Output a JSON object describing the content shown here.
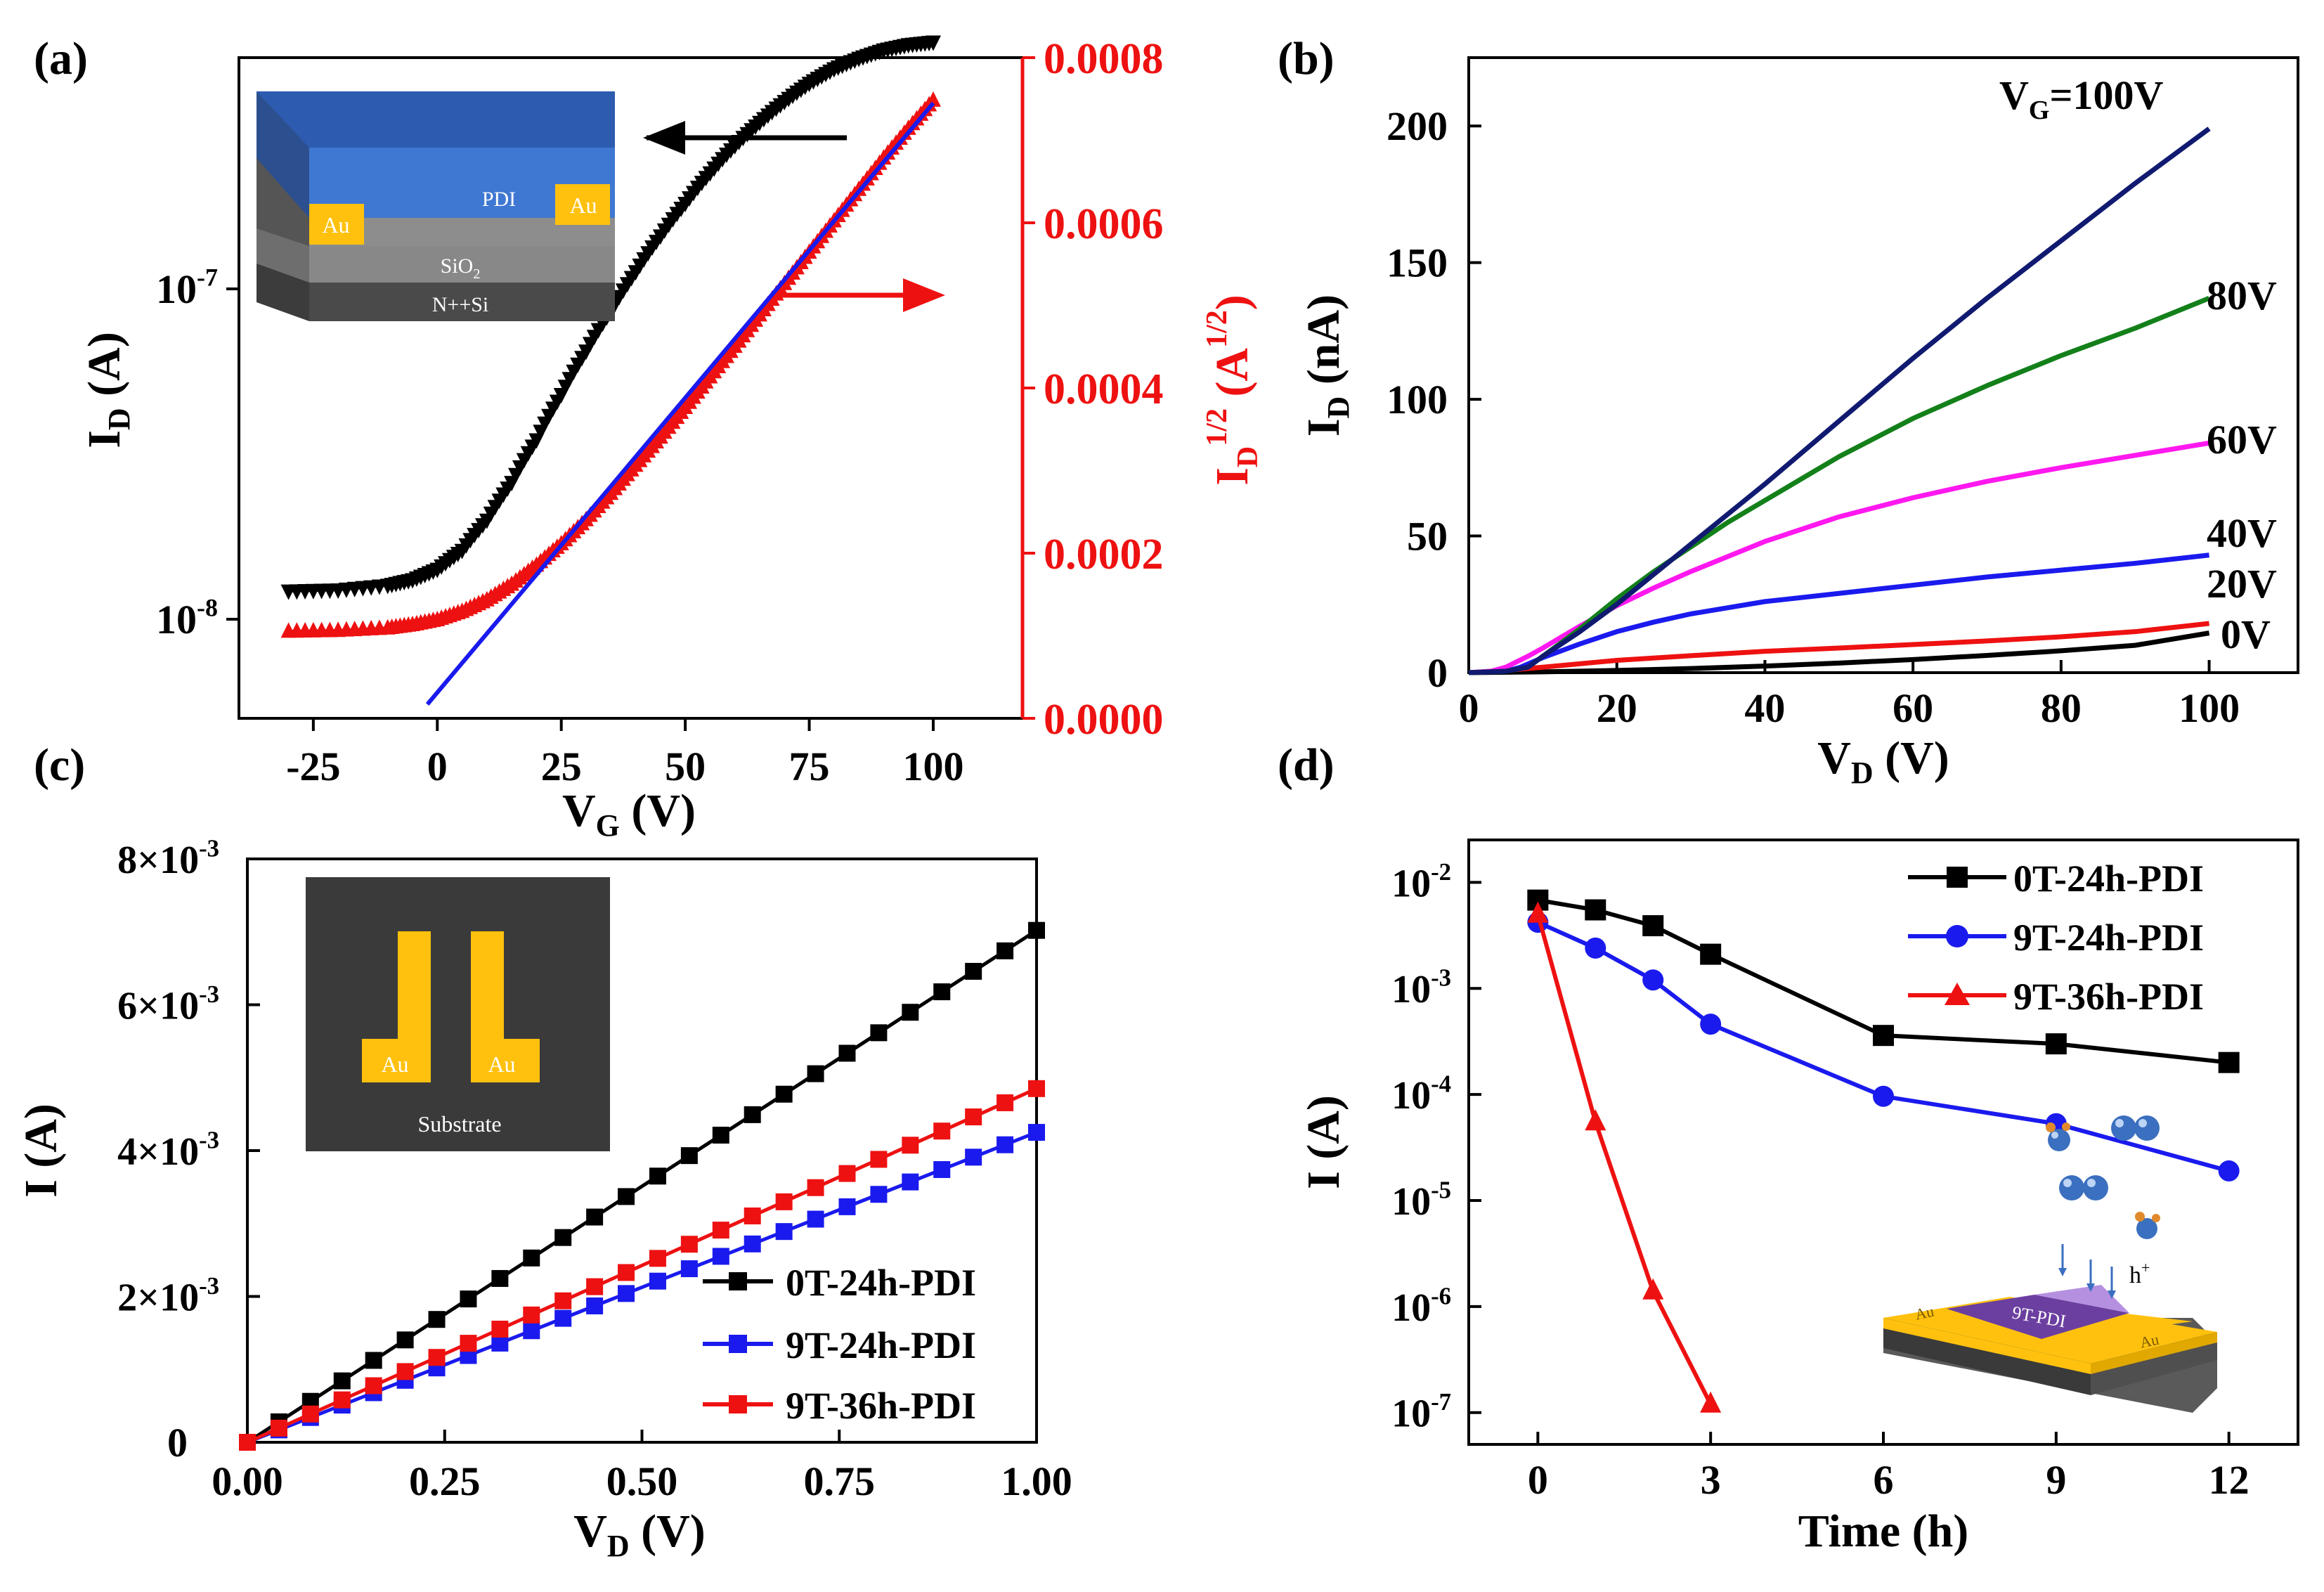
{
  "panels": {
    "a": {
      "label": "(a)",
      "inset": {
        "layer_top": "PDI",
        "electrode": "Au",
        "oxide": "SiO",
        "oxide_sub": "2",
        "substrate": "N++Si"
      }
    },
    "b": {
      "label": "(b)"
    },
    "c": {
      "label": "(c)",
      "inset": {
        "electrode": "Au",
        "substrate": "Substrate"
      }
    },
    "d": {
      "label": "(d)",
      "inset": {
        "electrode": "Au",
        "channel": "9T-PDI",
        "hole": "h",
        "hole_sup": "+"
      }
    }
  },
  "colors": {
    "black": "#000000",
    "red": "#ee1111",
    "blue": "#1a1aee",
    "navy": "#101a70",
    "green": "#13801a",
    "magenta": "#ff18ef",
    "gold": "#ffc10e",
    "slate": "#3a3a3a"
  },
  "chart_data": [
    {
      "id": "a",
      "type": "line",
      "x": {
        "label": "V",
        "label_sub": "G",
        "unit": "(V)",
        "range": [
          -40,
          118
        ],
        "ticks": [
          -25,
          0,
          25,
          50,
          75,
          100
        ],
        "tick_labels": [
          "-25",
          "0",
          "25",
          "50",
          "75",
          "100"
        ]
      },
      "y_left": {
        "label": "I",
        "label_sub": "D",
        "unit": "(A)",
        "scale": "log",
        "range_log10": [
          -8.3,
          -6.3
        ],
        "ticks_log10": [
          -8,
          -7
        ],
        "tick_base": "10",
        "tick_exps": [
          "-8",
          "-7"
        ]
      },
      "y_right": {
        "label": "I",
        "label_sub": "D",
        "label_sup": "1/2",
        "unit_base": "(A",
        "unit_sup": "1/2",
        "unit_end": ")",
        "range": [
          0,
          0.0008
        ],
        "ticks": [
          0,
          0.0002,
          0.0004,
          0.0006,
          0.0008
        ],
        "tick_labels": [
          "0.0000",
          "0.0002",
          "0.0004",
          "0.0006",
          "0.0008"
        ],
        "color": "#ee1111"
      },
      "series": [
        {
          "name": "I_D",
          "axis": "left",
          "color": "#000000",
          "marker": "triangle-down",
          "x": [
            -30,
            -20,
            -10,
            -5,
            0,
            5,
            10,
            15,
            20,
            25,
            30,
            35,
            40,
            45,
            50,
            55,
            60,
            65,
            70,
            75,
            80,
            85,
            90,
            95,
            100
          ],
          "y": [
            1.22e-08,
            1.23e-08,
            1.27e-08,
            1.32e-08,
            1.42e-08,
            1.62e-08,
            2e-08,
            2.6e-08,
            3.5e-08,
            4.8e-08,
            6.5e-08,
            8.6e-08,
            1.13e-07,
            1.45e-07,
            1.82e-07,
            2.25e-07,
            2.72e-07,
            3.2e-07,
            3.7e-07,
            4.2e-07,
            4.65e-07,
            5e-07,
            5.3e-07,
            5.5e-07,
            5.6e-07
          ]
        },
        {
          "name": "I_D^1/2",
          "axis": "right",
          "color": "#ee1111",
          "marker": "triangle-up",
          "x": [
            -30,
            -20,
            -10,
            -5,
            0,
            5,
            10,
            15,
            20,
            25,
            30,
            35,
            40,
            45,
            50,
            55,
            60,
            65,
            70,
            75,
            80,
            85,
            90,
            95,
            100
          ],
          "y": [
            0.000105,
            0.000106,
            0.000109,
            0.000113,
            0.000119,
            0.000129,
            0.000143,
            0.000162,
            0.000185,
            0.000211,
            0.00024,
            0.000272,
            0.000306,
            0.00034,
            0.000376,
            0.000413,
            0.00045,
            0.000488,
            0.000526,
            0.000564,
            0.000602,
            0.00064,
            0.000678,
            0.000714,
            0.000748
          ]
        },
        {
          "name": "linear fit",
          "axis": "right",
          "color": "#1a1aee",
          "marker": "none",
          "x": [
            -2,
            100
          ],
          "y": [
            1.7e-05,
            0.000745
          ]
        }
      ],
      "annotations": [
        {
          "arrow": "left",
          "color": "#000000",
          "points_to": "left axis"
        },
        {
          "arrow": "right",
          "color": "#ee1111",
          "points_to": "right axis"
        }
      ]
    },
    {
      "id": "b",
      "type": "line",
      "x": {
        "label": "V",
        "label_sub": "D",
        "unit": "(V)",
        "range": [
          0,
          112
        ],
        "ticks": [
          0,
          20,
          40,
          60,
          80,
          100
        ],
        "tick_labels": [
          "0",
          "20",
          "40",
          "60",
          "80",
          "100"
        ]
      },
      "y": {
        "label": "I",
        "label_sub": "D",
        "unit": "(nA)",
        "range": [
          0,
          225
        ],
        "ticks": [
          0,
          50,
          100,
          150,
          200
        ],
        "tick_labels": [
          "0",
          "50",
          "100",
          "150",
          "200"
        ]
      },
      "series": [
        {
          "name": "0V",
          "color": "#000000",
          "x": [
            0,
            10,
            20,
            30,
            40,
            50,
            60,
            70,
            80,
            90,
            100
          ],
          "y": [
            0,
            0.3,
            0.8,
            1.5,
            2.4,
            3.5,
            4.8,
            6.3,
            8.0,
            10.0,
            14.5
          ]
        },
        {
          "name": "20V",
          "color": "#ee1111",
          "x": [
            0,
            5,
            10,
            20,
            30,
            40,
            50,
            60,
            70,
            80,
            90,
            100
          ],
          "y": [
            0,
            0.8,
            2.0,
            4.5,
            6.2,
            7.8,
            9.0,
            10.3,
            11.6,
            13.1,
            15.0,
            18.0
          ]
        },
        {
          "name": "40V",
          "color": "#1a1aee",
          "x": [
            0,
            5,
            7,
            10,
            15,
            20,
            25,
            30,
            40,
            50,
            60,
            70,
            80,
            90,
            100
          ],
          "y": [
            0,
            0.5,
            2,
            5.5,
            10.5,
            15,
            18.5,
            21.5,
            26,
            29,
            32,
            35,
            37.5,
            40,
            43
          ]
        },
        {
          "name": "60V",
          "color": "#ff18ef",
          "x": [
            0,
            3,
            5,
            8,
            10,
            15,
            20,
            25,
            30,
            35,
            40,
            50,
            60,
            70,
            80,
            90,
            100
          ],
          "y": [
            0,
            0.5,
            2,
            6,
            9,
            17,
            24.5,
            31,
            37,
            42.5,
            48,
            57,
            64,
            70,
            75,
            79.5,
            84
          ]
        },
        {
          "name": "80V",
          "color": "#13801a",
          "x": [
            0,
            5,
            8,
            10,
            15,
            20,
            25,
            30,
            35,
            40,
            50,
            60,
            70,
            80,
            90,
            100
          ],
          "y": [
            0,
            0.5,
            2,
            6,
            16,
            27,
            37,
            46,
            55,
            63,
            79,
            93,
            105,
            116,
            126,
            137
          ]
        },
        {
          "name": "V_G=100V",
          "color": "#101a70",
          "x": [
            0,
            5,
            8,
            10,
            15,
            20,
            25,
            30,
            35,
            40,
            50,
            60,
            70,
            80,
            90,
            100
          ],
          "y": [
            0,
            0.5,
            2,
            6,
            15,
            25,
            36,
            47,
            58,
            69,
            92,
            115,
            137,
            158,
            179,
            199
          ]
        }
      ],
      "curve_labels": [
        {
          "text": "V",
          "sub": "G",
          "rest": "=100V",
          "series": "V_G=100V"
        },
        {
          "text": "80V",
          "series": "80V"
        },
        {
          "text": "60V",
          "series": "60V"
        },
        {
          "text": "40V",
          "series": "40V"
        },
        {
          "text": "20V",
          "series": "20V"
        },
        {
          "text": "0V",
          "series": "0V"
        }
      ]
    },
    {
      "id": "c",
      "type": "line",
      "x": {
        "label": "V",
        "label_sub": "D",
        "unit": "(V)",
        "range": [
          0,
          1
        ],
        "ticks": [
          0,
          0.25,
          0.5,
          0.75,
          1.0
        ],
        "tick_labels": [
          "0.00",
          "0.25",
          "0.50",
          "0.75",
          "1.00"
        ]
      },
      "y": {
        "label": "I (A)",
        "range": [
          0,
          0.008
        ],
        "ticks": [
          0,
          0.002,
          0.004,
          0.006,
          0.008
        ],
        "tick_mantissa": [
          "",
          "2",
          "4",
          "6",
          "8"
        ],
        "tick_exp": "-3",
        "tick_zero": "0"
      },
      "series": [
        {
          "name": "0T-24h-PDI",
          "color": "#000000",
          "marker": "square",
          "slope": 0.00702
        },
        {
          "name": "9T-24h-PDI",
          "color": "#1a1aee",
          "marker": "square",
          "slope": 0.00425
        },
        {
          "name": "9T-36h-PDI",
          "color": "#ee1111",
          "marker": "square",
          "slope": 0.00485
        }
      ],
      "points_per_series": 26,
      "legend": {
        "position": "bottom-right",
        "entries": [
          "0T-24h-PDI",
          "9T-24h-PDI",
          "9T-36h-PDI"
        ]
      }
    },
    {
      "id": "d",
      "type": "line",
      "x": {
        "label": "Time (h)",
        "range": [
          -1.2,
          13.2
        ],
        "ticks": [
          0,
          3,
          6,
          9,
          12
        ],
        "tick_labels": [
          "0",
          "3",
          "6",
          "9",
          "12"
        ]
      },
      "y": {
        "label": "I (A)",
        "scale": "log",
        "range_log10": [
          -7.3,
          -1.6
        ],
        "ticks_log10": [
          -7,
          -6,
          -5,
          -4,
          -3,
          -2
        ],
        "tick_base": "10",
        "tick_exps": [
          "-7",
          "-6",
          "-5",
          "-4",
          "-3",
          "-2"
        ]
      },
      "series": [
        {
          "name": "0T-24h-PDI",
          "color": "#000000",
          "marker": "square",
          "x": [
            0,
            1,
            2,
            3,
            6,
            9,
            12
          ],
          "y": [
            0.0068,
            0.0055,
            0.0039,
            0.0021,
            0.00036,
            0.0003,
            0.0002
          ]
        },
        {
          "name": "9T-24h-PDI",
          "color": "#1a1aee",
          "marker": "circle",
          "x": [
            0,
            1,
            2,
            3,
            6,
            9,
            12
          ],
          "y": [
            0.0042,
            0.0024,
            0.0012,
            0.00046,
            9.6e-05,
            5.3e-05,
            1.9e-05
          ]
        },
        {
          "name": "9T-36h-PDI",
          "color": "#ee1111",
          "marker": "triangle-up",
          "x": [
            0,
            1,
            2,
            3
          ],
          "y": [
            0.005,
            5.5e-05,
            1.4e-06,
            1.2e-07
          ]
        }
      ],
      "legend": {
        "position": "top-right",
        "entries": [
          "0T-24h-PDI",
          "9T-24h-PDI",
          "9T-36h-PDI"
        ]
      }
    }
  ]
}
